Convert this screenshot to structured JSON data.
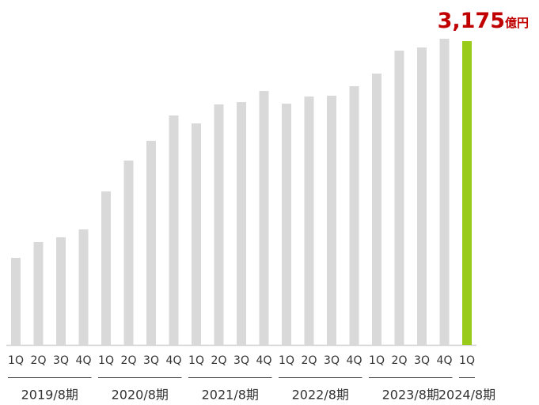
{
  "chart_data": {
    "type": "bar",
    "groups": [
      {
        "name": "2019/8期",
        "categories": [
          "1Q",
          "2Q",
          "3Q",
          "4Q"
        ]
      },
      {
        "name": "2020/8期",
        "categories": [
          "1Q",
          "2Q",
          "3Q",
          "4Q"
        ]
      },
      {
        "name": "2021/8期",
        "categories": [
          "1Q",
          "2Q",
          "3Q",
          "4Q"
        ]
      },
      {
        "name": "2022/8期",
        "categories": [
          "1Q",
          "2Q",
          "3Q",
          "4Q"
        ]
      },
      {
        "name": "2023/8期",
        "categories": [
          "1Q",
          "2Q",
          "3Q",
          "4Q"
        ]
      },
      {
        "name": "2024/8期",
        "categories": [
          "1Q"
        ]
      }
    ],
    "values": [
      910,
      1075,
      1125,
      1207,
      1604,
      1927,
      2133,
      2398,
      2315,
      2514,
      2538,
      2654,
      2522,
      2596,
      2605,
      2704,
      2836,
      3076,
      3109,
      3200,
      3175
    ],
    "colors": [
      "#d9d9d9",
      "#d9d9d9",
      "#d9d9d9",
      "#d9d9d9",
      "#d9d9d9",
      "#d9d9d9",
      "#d9d9d9",
      "#d9d9d9",
      "#d9d9d9",
      "#d9d9d9",
      "#d9d9d9",
      "#d9d9d9",
      "#d9d9d9",
      "#d9d9d9",
      "#d9d9d9",
      "#d9d9d9",
      "#d9d9d9",
      "#d9d9d9",
      "#d9d9d9",
      "#d9d9d9",
      "#99cc1a"
    ],
    "value_labels": [
      null,
      null,
      null,
      null,
      null,
      null,
      null,
      null,
      null,
      null,
      null,
      null,
      null,
      null,
      null,
      null,
      null,
      null,
      null,
      null,
      "3,175"
    ],
    "value_unit": "億円",
    "label_color": "#c00000"
  }
}
